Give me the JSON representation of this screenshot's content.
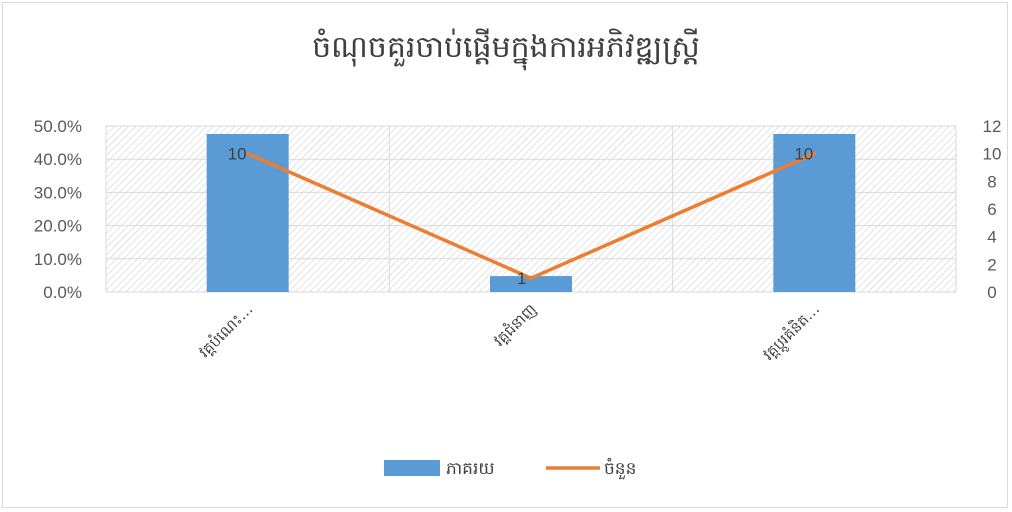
{
  "chart_data": {
    "type": "bar",
    "title": "ចំណុចគួរចាប់ផ្តើមក្នុងការអភិវឌ្ឍស្ត្រី",
    "categories": [
      "វគ្គបំណេះ…",
      "វគ្គជំនាញ",
      "វគ្គប្តូរគំនិត…"
    ],
    "series": [
      {
        "name": "ភាគរយ",
        "type": "bar",
        "axis": "left",
        "color": "#5b9bd5",
        "values": [
          47.6,
          4.8,
          47.6
        ]
      },
      {
        "name": "ចំនួន",
        "type": "line",
        "axis": "right",
        "color": "#ed7d31",
        "values": [
          10,
          1,
          10
        ],
        "data_labels": [
          "10",
          "1",
          "10"
        ]
      }
    ],
    "y_left": {
      "ylim": [
        0,
        50
      ],
      "ticks": [
        "0.0%",
        "10.0%",
        "20.0%",
        "30.0%",
        "40.0%",
        "50.0%"
      ]
    },
    "y_right": {
      "ylim": [
        0,
        12
      ],
      "ticks": [
        "0",
        "2",
        "4",
        "6",
        "8",
        "10",
        "12"
      ]
    },
    "plot_background": "hatched",
    "grid": true,
    "legend": "bottom"
  }
}
